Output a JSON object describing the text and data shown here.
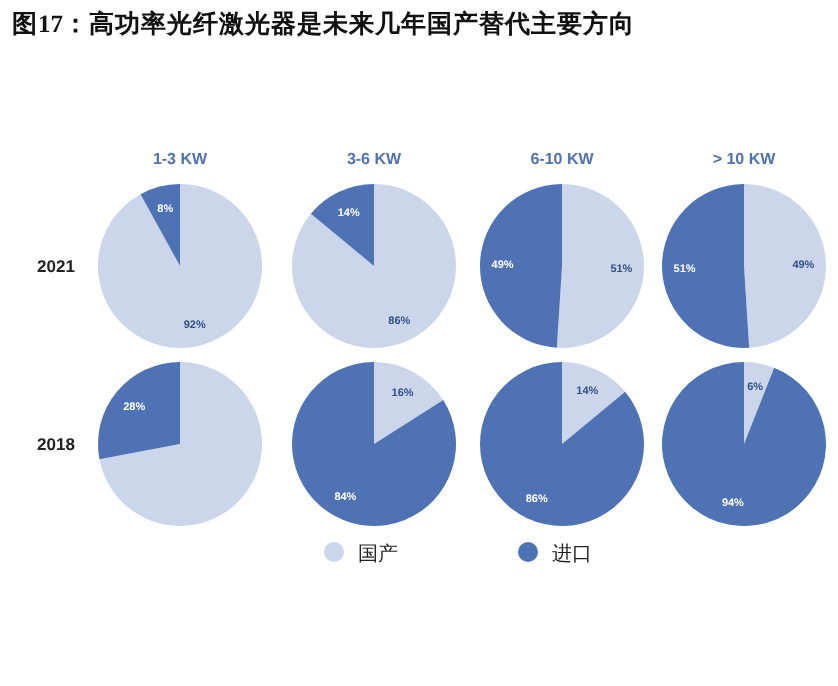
{
  "chart_data": [
    {
      "type": "pie",
      "title": "1-3 KW",
      "ylabel": "2021",
      "annotations": [
        "图17：高功率光纤激光器是未来几年国产替代主要方向"
      ],
      "values": [
        92,
        8
      ],
      "colors": [
        "#ccd6ea",
        "#4e72b3"
      ],
      "value_labels": [
        "92%",
        "8%"
      ]
    },
    {
      "type": "pie",
      "title": "3-6 KW",
      "values": [
        86,
        14
      ],
      "colors": [
        "#ccd6ea",
        "#4e72b3"
      ],
      "value_labels": [
        "86%",
        "14%"
      ]
    },
    {
      "type": "pie",
      "title": "6-10 KW",
      "values": [
        51,
        49
      ],
      "colors": [
        "#ccd6ea",
        "#4e72b3"
      ],
      "value_labels": [
        "51%",
        "49%"
      ]
    },
    {
      "type": "pie",
      "title": "> 10 KW",
      "values": [
        49,
        51
      ],
      "colors": [
        "#ccd6ea",
        "#4e72b3"
      ],
      "value_labels": [
        "49%",
        "51%"
      ]
    },
    {
      "type": "pie",
      "ylabel": "2018",
      "legend": "bottom",
      "categories": [
        "国产",
        "进口"
      ],
      "values": [
        72,
        28
      ],
      "colors": [
        "#ccd6ea",
        "#4e72b3"
      ],
      "value_labels": [
        null,
        "28%"
      ]
    },
    {
      "type": "pie",
      "values": [
        16,
        84
      ],
      "colors": [
        "#ccd6ea",
        "#4e72b3"
      ],
      "value_labels": [
        "16%",
        "84%"
      ]
    },
    {
      "type": "pie",
      "values": [
        14,
        86
      ],
      "colors": [
        "#ccd6ea",
        "#4e72b3"
      ],
      "value_labels": [
        "14%",
        "86%"
      ]
    },
    {
      "type": "pie",
      "values": [
        6,
        94
      ],
      "colors": [
        "#ccd6ea",
        "#4e72b3"
      ],
      "value_labels": [
        "6%",
        "94%"
      ]
    }
  ]
}
